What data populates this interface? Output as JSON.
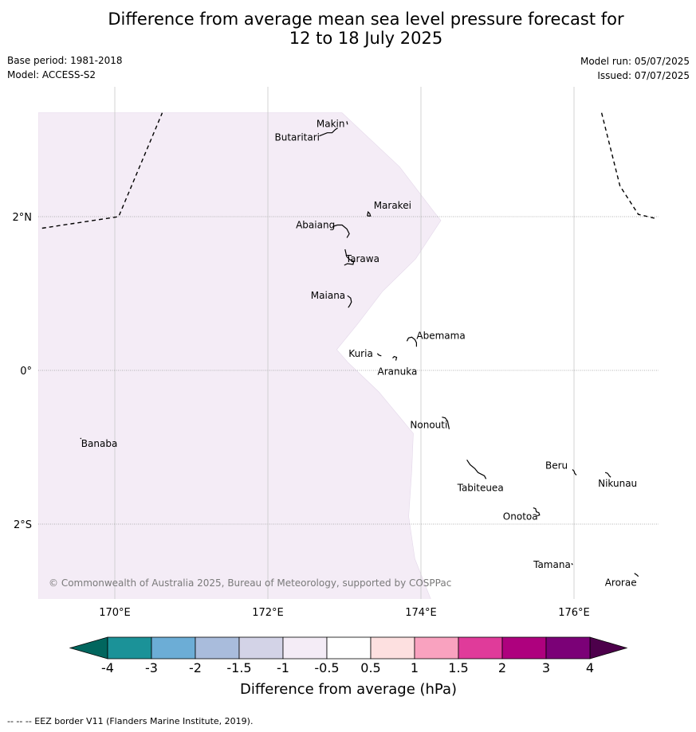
{
  "title_line1": "Difference from average mean sea level pressure forecast for",
  "title_line2": "12 to 18 July 2025",
  "base_period": "Base period: 1981-2018",
  "model": "Model: ACCESS-S2",
  "model_run": "Model run: 05/07/2025",
  "issued": "Issued: 07/07/2025",
  "copyright": "© Commonwealth of Australia 2025, Bureau of Meteorology, supported by COSPPac",
  "footnote": "--  --  -- EEZ border V11 (Flanders Marine Institute, 2019).",
  "map": {
    "lon_range": [
      169,
      177.1
    ],
    "lat_range": [
      -2.98,
      3.35
    ],
    "lon_ticks": [
      {
        "value": 170,
        "label": "170°E"
      },
      {
        "value": 172,
        "label": "172°E"
      },
      {
        "value": 174,
        "label": "174°E"
      },
      {
        "value": 176,
        "label": "176°E"
      }
    ],
    "lat_ticks": [
      {
        "value": 2,
        "label": "2°N"
      },
      {
        "value": 0,
        "label": "0°"
      },
      {
        "value": -2,
        "label": "2°S"
      }
    ],
    "anomaly_region": {
      "category": "-1 to -0.5",
      "color": "#f4ecf6",
      "boundary": [
        [
          169,
          3.35
        ],
        [
          172.97,
          3.35
        ],
        [
          173.72,
          2.65
        ],
        [
          174.18,
          2.05
        ],
        [
          174.26,
          1.95
        ],
        [
          173.93,
          1.45
        ],
        [
          173.5,
          1.03
        ],
        [
          173.17,
          0.6
        ],
        [
          172.9,
          0.27
        ],
        [
          173.05,
          0.1
        ],
        [
          173.45,
          -0.28
        ],
        [
          173.9,
          -0.82
        ],
        [
          173.88,
          -1.3
        ],
        [
          173.84,
          -1.9
        ],
        [
          173.92,
          -2.45
        ],
        [
          174.13,
          -2.98
        ],
        [
          169,
          -2.98
        ]
      ]
    },
    "eez_lines": [
      [
        [
          169.05,
          1.85
        ],
        [
          170.05,
          2.0
        ],
        [
          170.62,
          3.35
        ]
      ],
      [
        [
          176.36,
          3.35
        ],
        [
          176.6,
          2.4
        ],
        [
          176.84,
          2.03
        ],
        [
          177.05,
          1.98
        ]
      ]
    ],
    "islands": [
      {
        "name": "Makin",
        "lon": 173.03,
        "lat": 3.22
      },
      {
        "name": "Butaritari",
        "lon": 172.88,
        "lat": 3.05
      },
      {
        "name": "Marakei",
        "lon": 173.32,
        "lat": 2.03
      },
      {
        "name": "Abaiang",
        "lon": 172.97,
        "lat": 1.85
      },
      {
        "name": "Tarawa",
        "lon": 173.05,
        "lat": 1.42
      },
      {
        "name": "Maiana",
        "lon": 173.04,
        "lat": 0.92
      },
      {
        "name": "Abemama",
        "lon": 173.9,
        "lat": 0.38
      },
      {
        "name": "Kuria",
        "lon": 173.43,
        "lat": 0.22
      },
      {
        "name": "Aranuka",
        "lon": 173.63,
        "lat": 0.16
      },
      {
        "name": "Nonouti",
        "lon": 174.4,
        "lat": -0.67
      },
      {
        "name": "Banaba",
        "lon": 169.55,
        "lat": -0.88
      },
      {
        "name": "Tabiteuea",
        "lon": 174.85,
        "lat": -1.35
      },
      {
        "name": "Beru",
        "lon": 176.0,
        "lat": -1.32
      },
      {
        "name": "Nikunau",
        "lon": 176.47,
        "lat": -1.37
      },
      {
        "name": "Onotoa",
        "lon": 175.55,
        "lat": -1.84
      },
      {
        "name": "Tamana",
        "lon": 175.97,
        "lat": -2.51
      },
      {
        "name": "Arorae",
        "lon": 176.82,
        "lat": -2.65
      }
    ]
  },
  "colorbar": {
    "label": "Difference from average (hPa)",
    "ticks": [
      "-4",
      "-3",
      "-2",
      "-1.5",
      "-1",
      "-0.5",
      "0.5",
      "1",
      "1.5",
      "2",
      "3",
      "4"
    ],
    "colors": [
      "#1b9298",
      "#6cadd6",
      "#a9bcdc",
      "#d3d3e7",
      "#f4ecf6",
      "#ffffff",
      "#fde0e0",
      "#f9a2bf",
      "#e03b9a",
      "#ae017e",
      "#7b0177"
    ],
    "under_color": "#01665e",
    "over_color": "#4d004b"
  }
}
